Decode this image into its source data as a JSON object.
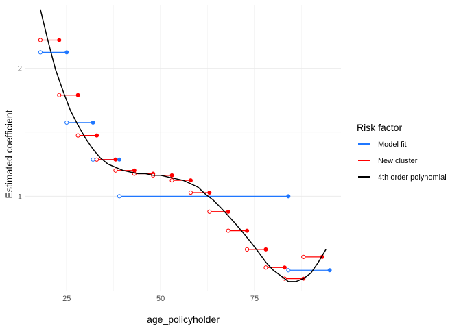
{
  "chart_data": {
    "type": "line",
    "title": "",
    "xlabel": "age_policyholder",
    "ylabel": "Estimated coefficient",
    "xlim": [
      14,
      98
    ],
    "ylim": [
      0.6,
      2.81
    ],
    "y_scale": "log",
    "x_ticks": [
      25,
      50,
      75
    ],
    "y_ticks": [
      1,
      2
    ],
    "grid": true,
    "legend": {
      "title": "Risk factor",
      "position": "right",
      "entries": [
        "Model fit",
        "New cluster",
        "4th order polynomial"
      ]
    },
    "colors": {
      "model_fit": "#1f77ff",
      "new_cluster": "#ff0000",
      "polynomial": "#000000"
    },
    "series": [
      {
        "name": "Model fit",
        "kind": "step",
        "color": "#1f77ff",
        "segments": [
          {
            "x_start": 18,
            "x_end": 25,
            "y": 2.18
          },
          {
            "x_start": 25,
            "x_end": 32,
            "y": 1.49
          },
          {
            "x_start": 32,
            "x_end": 39,
            "y": 1.22
          },
          {
            "x_start": 39,
            "x_end": 84,
            "y": 1.0
          },
          {
            "x_start": 84,
            "x_end": 95,
            "y": 0.67
          }
        ]
      },
      {
        "name": "New cluster",
        "kind": "step",
        "color": "#ff0000",
        "segments": [
          {
            "x_start": 18,
            "x_end": 23,
            "y": 2.33
          },
          {
            "x_start": 23,
            "x_end": 28,
            "y": 1.73
          },
          {
            "x_start": 28,
            "x_end": 33,
            "y": 1.39
          },
          {
            "x_start": 33,
            "x_end": 38,
            "y": 1.22
          },
          {
            "x_start": 38,
            "x_end": 43,
            "y": 1.15
          },
          {
            "x_start": 43,
            "x_end": 48,
            "y": 1.13
          },
          {
            "x_start": 48,
            "x_end": 53,
            "y": 1.12
          },
          {
            "x_start": 53,
            "x_end": 58,
            "y": 1.09
          },
          {
            "x_start": 58,
            "x_end": 63,
            "y": 1.02
          },
          {
            "x_start": 63,
            "x_end": 68,
            "y": 0.92
          },
          {
            "x_start": 68,
            "x_end": 73,
            "y": 0.83
          },
          {
            "x_start": 73,
            "x_end": 78,
            "y": 0.75
          },
          {
            "x_start": 78,
            "x_end": 83,
            "y": 0.68
          },
          {
            "x_start": 83,
            "x_end": 88,
            "y": 0.64
          },
          {
            "x_start": 88,
            "x_end": 93,
            "y": 0.72
          }
        ]
      },
      {
        "name": "4th order polynomial",
        "kind": "line",
        "color": "#000000",
        "x": [
          18,
          20,
          22,
          24,
          26,
          28,
          30,
          32,
          34,
          36,
          38,
          40,
          42,
          44,
          46,
          48,
          50,
          52,
          54,
          56,
          58,
          60,
          62,
          64,
          66,
          68,
          70,
          72,
          74,
          76,
          78,
          80,
          82,
          84,
          86,
          88,
          90,
          92,
          94
        ],
        "y": [
          2.75,
          2.32,
          1.99,
          1.77,
          1.59,
          1.47,
          1.37,
          1.29,
          1.23,
          1.19,
          1.17,
          1.15,
          1.14,
          1.13,
          1.13,
          1.12,
          1.12,
          1.11,
          1.1,
          1.09,
          1.07,
          1.05,
          1.01,
          0.98,
          0.94,
          0.9,
          0.86,
          0.82,
          0.78,
          0.74,
          0.7,
          0.67,
          0.65,
          0.63,
          0.63,
          0.64,
          0.66,
          0.7,
          0.75
        ]
      }
    ]
  }
}
